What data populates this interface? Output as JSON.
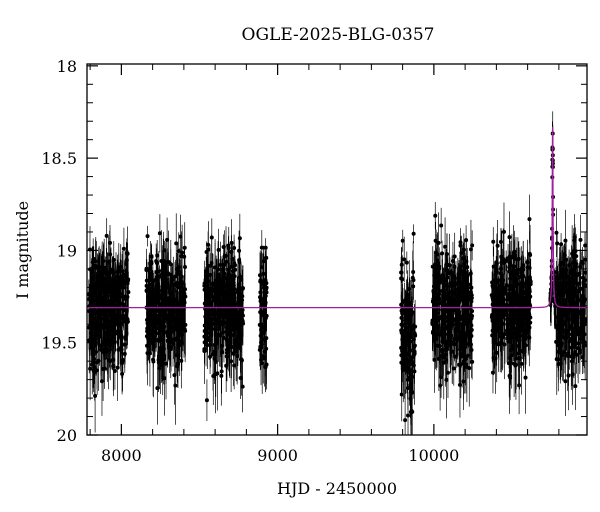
{
  "chart_data": {
    "type": "scatter",
    "title": "OGLE-2025-BLG-0357",
    "xlabel": "HJD - 2450000",
    "ylabel": "I magnitude",
    "xlim": [
      7780,
      10980
    ],
    "ylim": [
      20.0,
      17.99
    ],
    "y_inverted": true,
    "grid": false,
    "x_ticks": [
      8000,
      9000,
      10000
    ],
    "x_tick_labels": [
      "8000",
      "9000",
      "10000"
    ],
    "y_ticks": [
      18,
      18.5,
      19,
      19.5,
      20
    ],
    "y_tick_labels": [
      "18",
      "18.5",
      "19",
      "19.5",
      "20"
    ],
    "baseline_magnitude": 19.31,
    "peak": {
      "hjd": 10760,
      "magnitude": 18.33,
      "tE_days": 3
    },
    "observing_seasons": [
      {
        "start": 7790,
        "end": 8045,
        "mean_mag": 19.31,
        "scatter": 0.28
      },
      {
        "start": 8160,
        "end": 8410,
        "mean_mag": 19.31,
        "scatter": 0.28
      },
      {
        "start": 8530,
        "end": 8780,
        "mean_mag": 19.31,
        "scatter": 0.28
      },
      {
        "start": 8885,
        "end": 8930,
        "mean_mag": 19.31,
        "scatter": 0.26
      },
      {
        "start": 9790,
        "end": 9880,
        "mean_mag": 19.45,
        "scatter": 0.32
      },
      {
        "start": 9990,
        "end": 10245,
        "mean_mag": 19.31,
        "scatter": 0.28
      },
      {
        "start": 10370,
        "end": 10620,
        "mean_mag": 19.31,
        "scatter": 0.28
      },
      {
        "start": 10745,
        "end": 10970,
        "mean_mag": 19.31,
        "scatter": 0.28
      }
    ],
    "series": [
      {
        "kind": "points",
        "color": "#000000",
        "errorbars": true
      },
      {
        "kind": "model",
        "color": "#a020a0"
      }
    ]
  }
}
